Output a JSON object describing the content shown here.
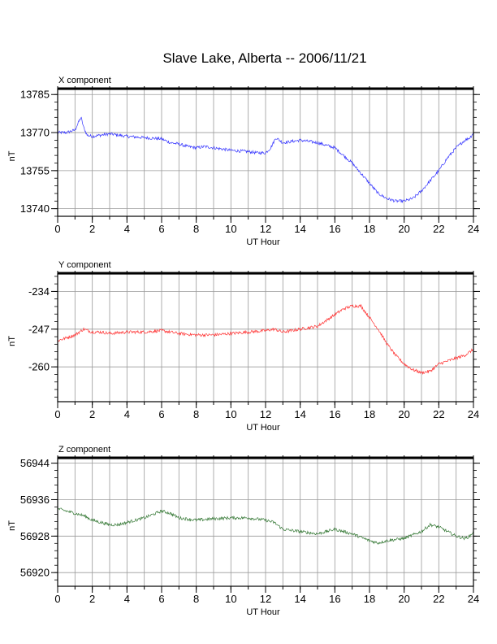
{
  "title": "Slave Lake, Alberta -- 2006/11/21",
  "chart_data": [
    {
      "type": "line",
      "panel_label": "X component",
      "xlabel": "UT Hour",
      "ylabel": "nT",
      "xlim": [
        0,
        24
      ],
      "ylim": [
        13737,
        13787
      ],
      "xticks": [
        0,
        2,
        4,
        6,
        8,
        10,
        12,
        14,
        16,
        18,
        20,
        22,
        24
      ],
      "yticks": [
        13740,
        13755,
        13770,
        13785
      ],
      "grid": true,
      "color": "#3333ff",
      "x": [
        0,
        0.5,
        1.0,
        1.2,
        1.35,
        1.5,
        1.7,
        2.0,
        2.5,
        3.0,
        3.5,
        4.0,
        5.0,
        6.0,
        6.5,
        7.0,
        7.5,
        8.0,
        8.5,
        9.0,
        10.0,
        11.0,
        11.5,
        12.0,
        12.3,
        12.6,
        13.0,
        14.0,
        15.0,
        15.5,
        16.0,
        16.5,
        17.0,
        17.5,
        18.0,
        18.5,
        19.0,
        19.5,
        20.0,
        20.5,
        21.0,
        21.5,
        22.0,
        22.5,
        23.0,
        23.5,
        23.8,
        24.0
      ],
      "y": [
        13770,
        13770,
        13771,
        13774,
        13776,
        13772,
        13769,
        13768.5,
        13769,
        13769.5,
        13769,
        13768.5,
        13768,
        13767.5,
        13766,
        13765.5,
        13764.5,
        13764,
        13764.5,
        13764,
        13763,
        13762.5,
        13762,
        13762,
        13764,
        13768,
        13766,
        13767,
        13766,
        13765,
        13764,
        13761,
        13758,
        13754,
        13750,
        13746,
        13744,
        13743,
        13743,
        13744,
        13747,
        13751,
        13755,
        13760,
        13764,
        13767,
        13768,
        13770
      ]
    },
    {
      "type": "line",
      "panel_label": "Y component",
      "xlabel": "UT Hour",
      "ylabel": "nT",
      "xlim": [
        0,
        24
      ],
      "ylim": [
        -272,
        -228
      ],
      "xticks": [
        0,
        2,
        4,
        6,
        8,
        10,
        12,
        14,
        16,
        18,
        20,
        22,
        24
      ],
      "yticks": [
        -234,
        -247,
        -260
      ],
      "grid": true,
      "color": "#ff3333",
      "x": [
        0,
        0.5,
        1.0,
        1.5,
        2.0,
        2.5,
        3.0,
        4.0,
        5.0,
        6.0,
        7.0,
        8.0,
        9.0,
        10.0,
        11.0,
        12.0,
        12.5,
        13.0,
        14.0,
        15.0,
        15.5,
        16.0,
        16.5,
        17.0,
        17.5,
        18.0,
        18.5,
        19.0,
        19.5,
        20.0,
        20.5,
        21.0,
        21.5,
        22.0,
        22.5,
        23.0,
        23.5,
        24.0
      ],
      "y": [
        -251,
        -250,
        -249,
        -247,
        -248,
        -248,
        -248.5,
        -248,
        -248,
        -247.5,
        -248.5,
        -249,
        -249,
        -248.5,
        -248,
        -247.5,
        -247,
        -248,
        -247,
        -246,
        -244,
        -242,
        -240,
        -239,
        -239,
        -243,
        -247,
        -252,
        -256,
        -259,
        -261,
        -262,
        -261.5,
        -259,
        -258,
        -257,
        -256,
        -254
      ]
    },
    {
      "type": "line",
      "panel_label": "Z component",
      "xlabel": "UT Hour",
      "ylabel": "nT",
      "xlim": [
        0,
        24
      ],
      "ylim": [
        56917,
        56945
      ],
      "xticks": [
        0,
        2,
        4,
        6,
        8,
        10,
        12,
        14,
        16,
        18,
        20,
        22,
        24
      ],
      "yticks": [
        56920,
        56928,
        56936,
        56944
      ],
      "grid": true,
      "color": "#337733",
      "x": [
        0,
        0.5,
        1.0,
        1.5,
        2.0,
        2.5,
        3.0,
        3.5,
        4.0,
        5.0,
        6.0,
        6.5,
        7.0,
        8.0,
        9.0,
        10.0,
        11.0,
        12.0,
        12.5,
        13.0,
        14.0,
        15.0,
        15.5,
        16.0,
        17.0,
        18.0,
        18.5,
        19.0,
        20.0,
        21.0,
        21.5,
        22.0,
        22.5,
        23.0,
        23.5,
        23.8,
        24.0
      ],
      "y": [
        56934,
        56933.5,
        56933,
        56932.5,
        56931.5,
        56931,
        56930.5,
        56930.5,
        56931,
        56932,
        56933.5,
        56933,
        56932,
        56931.5,
        56931.8,
        56932,
        56932,
        56931.5,
        56931,
        56929.5,
        56929,
        56928.5,
        56929,
        56929.5,
        56928.5,
        56927,
        56926.5,
        56927,
        56927.5,
        56929,
        56930.5,
        56930,
        56929,
        56928,
        56927.5,
        56928,
        56929
      ]
    }
  ]
}
